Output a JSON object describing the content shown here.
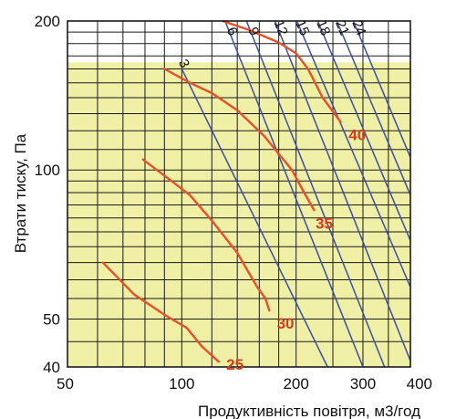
{
  "chart_data": {
    "type": "line",
    "xlabel": "Продуктивність повітря, м3/год",
    "ylabel": "Втрати тиску, Па",
    "x_scale": "log",
    "y_scale": "log",
    "xlim": [
      50,
      400
    ],
    "ylim": [
      40,
      200
    ],
    "x_ticks": [
      {
        "value": 50,
        "label": "50"
      },
      {
        "value": 100,
        "label": "100"
      },
      {
        "value": 200,
        "label": "200"
      },
      {
        "value": 300,
        "label": "300"
      },
      {
        "value": 400,
        "label": "400"
      }
    ],
    "y_ticks": [
      {
        "value": 40,
        "label": "40"
      },
      {
        "value": 50,
        "label": "50"
      },
      {
        "value": 100,
        "label": "100"
      },
      {
        "value": 200,
        "label": "200"
      }
    ],
    "x_grid": [
      60,
      70,
      80,
      90,
      100,
      120,
      140,
      160,
      180,
      200,
      250,
      300,
      350
    ],
    "y_grid": [
      45,
      50,
      55,
      60,
      65,
      70,
      75,
      80,
      85,
      90,
      95,
      100,
      110,
      120,
      130,
      140,
      150,
      160,
      170,
      180,
      190
    ],
    "shaded_region": {
      "y_from": 40,
      "y_to": 165,
      "color": "#EFEFA5"
    },
    "diagonal_lines": [
      {
        "label": "3",
        "points": [
          [
            100,
            160
          ],
          [
            242,
            40
          ]
        ]
      },
      {
        "label": "6",
        "points": [
          [
            130,
            200
          ],
          [
            300,
            40
          ]
        ]
      },
      {
        "label": "9",
        "points": [
          [
            148,
            200
          ],
          [
            342,
            40
          ]
        ]
      },
      {
        "label": "12",
        "points": [
          [
            176,
            200
          ],
          [
            406,
            40
          ]
        ]
      },
      {
        "label": "15",
        "points": [
          [
            201,
            200
          ],
          [
            400,
            58
          ]
        ]
      },
      {
        "label": "18",
        "points": [
          [
            228,
            200
          ],
          [
            400,
            72
          ]
        ]
      },
      {
        "label": "21",
        "points": [
          [
            256,
            200
          ],
          [
            400,
            89
          ]
        ]
      },
      {
        "label": "24",
        "points": [
          [
            283,
            200
          ],
          [
            400,
            106
          ]
        ]
      }
    ],
    "series": [
      {
        "name": "25",
        "points": [
          [
            62,
            65
          ],
          [
            75,
            56
          ],
          [
            90,
            51
          ],
          [
            103,
            48
          ],
          [
            113,
            44
          ],
          [
            125,
            41
          ]
        ],
        "label_at": [
          131,
          40.5
        ]
      },
      {
        "name": "30",
        "points": [
          [
            79,
            105
          ],
          [
            94,
            95
          ],
          [
            105,
            89
          ],
          [
            120,
            79
          ],
          [
            140,
            68
          ],
          [
            158,
            58
          ],
          [
            166,
            55
          ],
          [
            170,
            52
          ]
        ],
        "label_at": [
          178,
          49
        ]
      },
      {
        "name": "35",
        "points": [
          [
            90,
            160
          ],
          [
            105,
            150
          ],
          [
            120,
            143
          ],
          [
            140,
            132
          ],
          [
            165,
            117
          ],
          [
            195,
            100
          ],
          [
            210,
            90
          ],
          [
            223,
            83
          ]
        ],
        "label_at": [
          225,
          78
        ]
      },
      {
        "name": "40",
        "points": [
          [
            128,
            200
          ],
          [
            150,
            192
          ],
          [
            180,
            181
          ],
          [
            200,
            172
          ],
          [
            215,
            160
          ],
          [
            235,
            140
          ],
          [
            262,
            125
          ]
        ],
        "label_at": [
          275,
          118
        ]
      }
    ],
    "colors": {
      "grid": "#1a1a1a",
      "diagonal": "#3a4fa0",
      "curve": "#E8502A",
      "curve_label": "#D83A1A",
      "shade": "#EFEFA5"
    }
  }
}
